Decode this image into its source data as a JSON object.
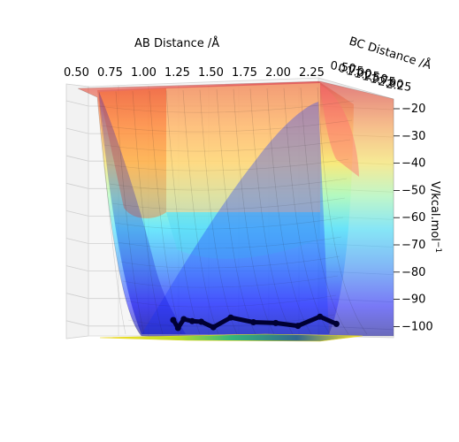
{
  "chart_data": {
    "type": "surface3d",
    "xlabel": "AB Distance /Å",
    "ylabel": "BC Distance /Å",
    "zlabel": "V/kcal.mol",
    "zlabel_superscript": "−1",
    "x_ticks": [
      "0.50",
      "0.75",
      "1.00",
      "1.25",
      "1.50",
      "1.75",
      "2.00",
      "2.25"
    ],
    "y_ticks": [
      "0.50",
      "0.75",
      "1.00",
      "1.25",
      "1.50",
      "1.75",
      "2.00",
      "2.25"
    ],
    "z_ticks": [
      "−20",
      "−30",
      "−40",
      "−50",
      "−60",
      "−70",
      "−80",
      "−90",
      "−100"
    ],
    "xlim": [
      0.5,
      2.35
    ],
    "ylim": [
      0.5,
      2.35
    ],
    "zlim": [
      -104,
      -20
    ],
    "colormap": "jet",
    "surface_alpha": 0.5,
    "contour_colormap": "viridis",
    "trajectory_color": "#000033",
    "trajectory": [
      [
        0.95,
        2.25
      ],
      [
        0.98,
        2.05
      ],
      [
        1.02,
        1.85
      ],
      [
        1.08,
        1.6
      ],
      [
        1.15,
        1.4
      ],
      [
        1.25,
        1.25
      ],
      [
        1.4,
        1.12
      ],
      [
        1.6,
        1.02
      ],
      [
        1.8,
        0.98
      ],
      [
        2.0,
        0.95
      ],
      [
        2.2,
        0.94
      ],
      [
        2.35,
        0.95
      ]
    ],
    "grid": true
  }
}
